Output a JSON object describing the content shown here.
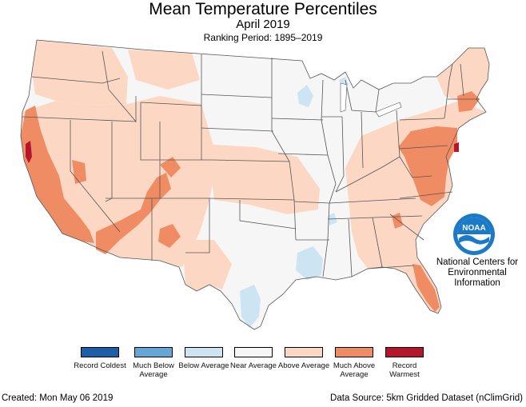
{
  "header": {
    "title": "Mean Temperature Percentiles",
    "subtitle": "April 2019",
    "period": "Ranking Period: 1895–2019"
  },
  "logo": {
    "text": "NOAA",
    "org": "National Centers for Environmental Information"
  },
  "colors": {
    "record_coldest": "#1c5fa8",
    "much_below": "#66a6d6",
    "below": "#cde4f3",
    "near": "#f6f6f6",
    "above": "#fcd8c4",
    "much_above": "#f08c64",
    "record_warmest": "#b5162b",
    "state_border": "#555555",
    "noaa_blue": "#1a7ac8"
  },
  "legend": [
    {
      "label": "Record Coldest",
      "color": "#1c5fa8"
    },
    {
      "label": "Much Below Average",
      "color": "#66a6d6"
    },
    {
      "label": "Below Average",
      "color": "#cde4f3"
    },
    {
      "label": "Near Average",
      "color": "#f6f6f6"
    },
    {
      "label": "Above Average",
      "color": "#fcd8c4"
    },
    {
      "label": "Much Above Average",
      "color": "#f08c64"
    },
    {
      "label": "Record Warmest",
      "color": "#b5162b"
    }
  ],
  "footer": {
    "created": "Created: Mon May 06 2019",
    "source": "Data Source: 5km Gridded Dataset (nClimGrid)"
  }
}
